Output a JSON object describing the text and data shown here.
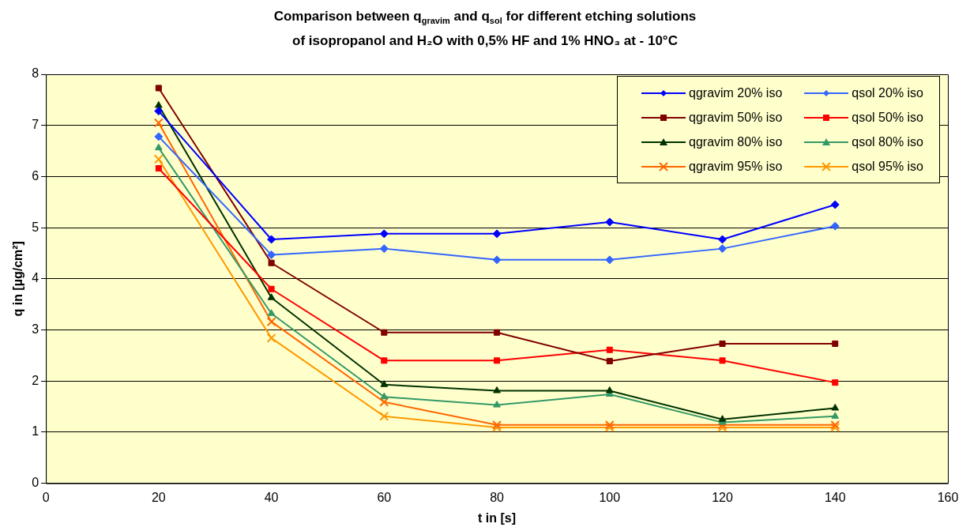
{
  "chart_data": {
    "type": "line",
    "title": "Comparison between q$_{gravim}$ and q$_{sol}$ for different etching solutions\nof isopropanol and H₂O with 0,5% HF and 1% HNO₃ at - 10°C",
    "xlabel": "t in [s]",
    "ylabel": "q in [µg/cm²]",
    "x": [
      20,
      40,
      60,
      80,
      100,
      120,
      140
    ],
    "xlim": [
      0,
      160
    ],
    "xticks": [
      0,
      20,
      40,
      60,
      80,
      100,
      120,
      140,
      160
    ],
    "ylim": [
      0,
      8
    ],
    "yticks": [
      0,
      1,
      2,
      3,
      4,
      5,
      6,
      7,
      8
    ],
    "grid": "y",
    "legend": "top right",
    "line_style": "solid",
    "series": [
      {
        "name": "qgravim 20% iso",
        "color": "#0000ff",
        "marker": "diamond",
        "values": [
          7.28,
          4.77,
          4.88,
          4.88,
          5.11,
          4.77,
          5.45
        ]
      },
      {
        "name": "qsol 20% iso",
        "color": "#3366ff",
        "marker": "diamond",
        "values": [
          6.78,
          4.47,
          4.59,
          4.37,
          4.37,
          4.59,
          5.03
        ]
      },
      {
        "name": "qgravim 50% iso",
        "color": "#800000",
        "marker": "square",
        "values": [
          7.73,
          4.31,
          2.95,
          2.95,
          2.39,
          2.73,
          2.73
        ]
      },
      {
        "name": "qsol 50% iso",
        "color": "#ff0000",
        "marker": "square",
        "values": [
          6.16,
          3.8,
          2.4,
          2.4,
          2.61,
          2.4,
          1.97
        ]
      },
      {
        "name": "qgravim 80% iso",
        "color": "#003300",
        "marker": "triangle",
        "values": [
          7.39,
          3.63,
          1.93,
          1.81,
          1.81,
          1.25,
          1.47
        ]
      },
      {
        "name": "qsol 80% iso",
        "color": "#339966",
        "marker": "triangle",
        "values": [
          6.56,
          3.32,
          1.69,
          1.53,
          1.74,
          1.19,
          1.31
        ]
      },
      {
        "name": "qgravim 95% iso",
        "color": "#ff6600",
        "marker": "cross",
        "values": [
          7.05,
          3.16,
          1.59,
          1.14,
          1.14,
          1.14,
          1.14
        ]
      },
      {
        "name": "qsol 95% iso",
        "color": "#ff9900",
        "marker": "cross",
        "values": [
          6.34,
          2.84,
          1.31,
          1.09,
          1.09,
          1.09,
          1.09
        ]
      }
    ]
  }
}
